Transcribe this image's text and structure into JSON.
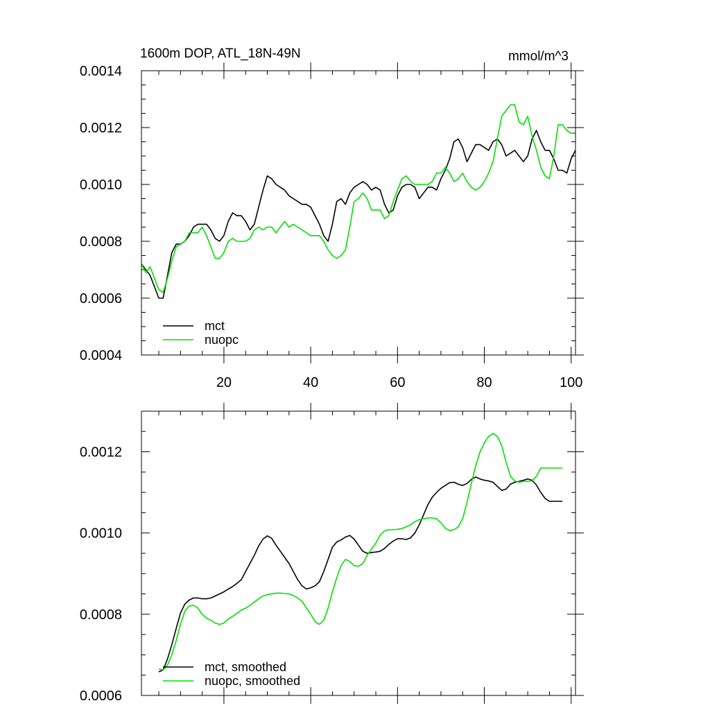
{
  "chart_data": [
    {
      "type": "line",
      "title": "1600m DOP, ATL_18N-49N",
      "units": "mmol/m^3",
      "xlabel": "",
      "ylabel": "",
      "xlim": [
        1,
        101
      ],
      "ylim": [
        0.0004,
        0.0014
      ],
      "x_ticks": [
        20,
        40,
        60,
        80,
        100
      ],
      "y_ticks": [
        0.0004,
        0.0006,
        0.0008,
        0.001,
        0.0012,
        0.0014
      ],
      "y_tick_labels": [
        "0.0004",
        "0.0006",
        "0.0008",
        "0.0010",
        "0.0012",
        "0.0014"
      ],
      "legend_position": "bottom-left",
      "series": [
        {
          "name": "mct",
          "color": "#000000",
          "x": [
            1,
            2,
            3,
            4,
            5,
            6,
            7,
            8,
            9,
            10,
            11,
            12,
            13,
            14,
            15,
            16,
            17,
            18,
            19,
            20,
            21,
            22,
            23,
            24,
            25,
            26,
            27,
            28,
            29,
            30,
            31,
            32,
            33,
            34,
            35,
            36,
            37,
            38,
            39,
            40,
            41,
            42,
            43,
            44,
            45,
            46,
            47,
            48,
            49,
            50,
            51,
            52,
            53,
            54,
            55,
            56,
            57,
            58,
            59,
            60,
            61,
            62,
            63,
            64,
            65,
            66,
            67,
            68,
            69,
            70,
            71,
            72,
            73,
            74,
            75,
            76,
            77,
            78,
            79,
            80,
            81,
            82,
            83,
            84,
            85,
            86,
            87,
            88,
            89,
            90,
            91,
            92,
            93,
            94,
            95,
            96,
            97,
            98,
            99,
            100,
            101
          ],
          "values": [
            0.00072,
            0.0007,
            0.00068,
            0.00064,
            0.0006,
            0.0006,
            0.00068,
            0.00076,
            0.00079,
            0.00079,
            0.0008,
            0.00082,
            0.00085,
            0.00086,
            0.00086,
            0.00086,
            0.00084,
            0.00081,
            0.0008,
            0.00082,
            0.00087,
            0.0009,
            0.00089,
            0.00089,
            0.00087,
            0.00084,
            0.00086,
            0.00092,
            0.00098,
            0.00103,
            0.00102,
            0.001,
            0.00099,
            0.00098,
            0.00096,
            0.00095,
            0.00094,
            0.00093,
            0.00093,
            0.00092,
            0.00089,
            0.00086,
            0.00082,
            0.0008,
            0.00086,
            0.00094,
            0.00095,
            0.00093,
            0.00097,
            0.00099,
            0.001,
            0.00101,
            0.001,
            0.00098,
            0.00099,
            0.00098,
            0.00093,
            0.0009,
            0.00091,
            0.00096,
            0.00099,
            0.001,
            0.001,
            0.00099,
            0.00095,
            0.00097,
            0.00099,
            0.00099,
            0.00098,
            0.00102,
            0.00105,
            0.00109,
            0.00115,
            0.00116,
            0.00113,
            0.00108,
            0.00111,
            0.00114,
            0.00114,
            0.00113,
            0.00112,
            0.00115,
            0.00116,
            0.00114,
            0.0011,
            0.00111,
            0.00112,
            0.0011,
            0.00108,
            0.0011,
            0.00116,
            0.00119,
            0.00115,
            0.00112,
            0.00112,
            0.00109,
            0.00105,
            0.00105,
            0.00104,
            0.00109,
            0.00112
          ]
        },
        {
          "name": "nuopc",
          "color": "#00e000",
          "x": [
            1,
            2,
            3,
            4,
            5,
            6,
            7,
            8,
            9,
            10,
            11,
            12,
            13,
            14,
            15,
            16,
            17,
            18,
            19,
            20,
            21,
            22,
            23,
            24,
            25,
            26,
            27,
            28,
            29,
            30,
            31,
            32,
            33,
            34,
            35,
            36,
            37,
            38,
            39,
            40,
            41,
            42,
            43,
            44,
            45,
            46,
            47,
            48,
            49,
            50,
            51,
            52,
            53,
            54,
            55,
            56,
            57,
            58,
            59,
            60,
            61,
            62,
            63,
            64,
            65,
            66,
            67,
            68,
            69,
            70,
            71,
            72,
            73,
            74,
            75,
            76,
            77,
            78,
            79,
            80,
            81,
            82,
            83,
            84,
            85,
            86,
            87,
            88,
            89,
            90,
            91,
            92,
            93,
            94,
            95,
            96,
            97,
            98,
            99,
            100,
            101
          ],
          "values": [
            0.00072,
            0.00069,
            0.00071,
            0.00067,
            0.00063,
            0.00062,
            0.00067,
            0.00073,
            0.00078,
            0.00079,
            0.0008,
            0.00083,
            0.00083,
            0.00083,
            0.00085,
            0.00082,
            0.00078,
            0.00074,
            0.00074,
            0.00076,
            0.0008,
            0.00081,
            0.0008,
            0.0008,
            0.0008,
            0.00081,
            0.00084,
            0.00085,
            0.00084,
            0.00085,
            0.00085,
            0.00083,
            0.00085,
            0.00087,
            0.00085,
            0.00086,
            0.00085,
            0.00084,
            0.00083,
            0.00082,
            0.00082,
            0.00082,
            0.0008,
            0.00077,
            0.00075,
            0.00074,
            0.00075,
            0.00077,
            0.00085,
            0.00094,
            0.00095,
            0.00097,
            0.00095,
            0.00091,
            0.00091,
            0.00091,
            0.00088,
            0.00089,
            0.00094,
            0.00098,
            0.00102,
            0.00103,
            0.00101,
            0.001,
            0.001,
            0.001,
            0.001,
            0.00101,
            0.00104,
            0.00104,
            0.00106,
            0.00104,
            0.00101,
            0.00102,
            0.00104,
            0.00101,
            0.00099,
            0.00098,
            0.00099,
            0.00101,
            0.00104,
            0.00108,
            0.00116,
            0.00124,
            0.00126,
            0.00128,
            0.00128,
            0.00122,
            0.00121,
            0.00124,
            0.00117,
            0.00112,
            0.00106,
            0.00103,
            0.00102,
            0.0011,
            0.00121,
            0.00121,
            0.00119,
            0.00118,
            0.00118
          ]
        }
      ]
    },
    {
      "type": "line",
      "title": "",
      "xlabel": "",
      "ylabel": "",
      "xlim": [
        1,
        101
      ],
      "ylim": [
        0.0006,
        0.0013
      ],
      "x_ticks": [
        20,
        40,
        60,
        80,
        100
      ],
      "y_ticks": [
        0.0006,
        0.0008,
        0.001,
        0.0012
      ],
      "y_tick_labels": [
        "0.0006",
        "0.0008",
        "0.0010",
        "0.0012"
      ],
      "legend_position": "bottom-left",
      "series": [
        {
          "name": "mct, smoothed",
          "color": "#000000",
          "x": [
            5,
            6,
            7,
            8,
            9,
            10,
            11,
            12,
            13,
            14,
            15,
            16,
            17,
            18,
            19,
            20,
            21,
            22,
            23,
            24,
            25,
            26,
            27,
            28,
            29,
            30,
            31,
            32,
            33,
            34,
            35,
            36,
            37,
            38,
            39,
            40,
            41,
            42,
            43,
            44,
            45,
            46,
            47,
            48,
            49,
            50,
            51,
            52,
            53,
            54,
            55,
            56,
            57,
            58,
            59,
            60,
            61,
            62,
            63,
            64,
            65,
            66,
            67,
            68,
            69,
            70,
            71,
            72,
            73,
            74,
            75,
            76,
            77,
            78,
            79,
            80,
            81,
            82,
            83,
            84,
            85,
            86,
            87,
            88,
            89,
            90,
            91,
            92,
            93,
            94,
            95,
            96,
            97,
            98
          ],
          "values": [
            0.000658,
            0.000663,
            0.00069,
            0.000725,
            0.000765,
            0.000803,
            0.000825,
            0.000835,
            0.00084,
            0.00084,
            0.000838,
            0.000838,
            0.00084,
            0.000845,
            0.00085,
            0.000855,
            0.000862,
            0.000868,
            0.000876,
            0.000885,
            0.000905,
            0.000925,
            0.000945,
            0.000968,
            0.000985,
            0.000993,
            0.000987,
            0.00097,
            0.000955,
            0.00094,
            0.000925,
            0.000905,
            0.000885,
            0.00087,
            0.000862,
            0.000865,
            0.00087,
            0.00088,
            0.000905,
            0.000935,
            0.000965,
            0.000978,
            0.000983,
            0.00099,
            0.000994,
            0.000985,
            0.00097,
            0.000955,
            0.00095,
            0.000952,
            0.000953,
            0.000955,
            0.000962,
            0.000972,
            0.00098,
            0.000986,
            0.000986,
            0.000984,
            0.000988,
            0.001,
            0.00102,
            0.001045,
            0.00107,
            0.001088,
            0.0011,
            0.00111,
            0.001117,
            0.001124,
            0.001125,
            0.00112,
            0.001117,
            0.001122,
            0.001132,
            0.001138,
            0.001133,
            0.00113,
            0.001128,
            0.001125,
            0.001115,
            0.001105,
            0.001108,
            0.00112,
            0.001125,
            0.001127,
            0.00113,
            0.001133,
            0.00113,
            0.001118,
            0.0011,
            0.001085,
            0.001078,
            0.001078,
            0.001078,
            0.001078
          ]
        },
        {
          "name": "nuopc, smoothed",
          "color": "#00e000",
          "x": [
            5,
            6,
            7,
            8,
            9,
            10,
            11,
            12,
            13,
            14,
            15,
            16,
            17,
            18,
            19,
            20,
            21,
            22,
            23,
            24,
            25,
            26,
            27,
            28,
            29,
            30,
            31,
            32,
            33,
            34,
            35,
            36,
            37,
            38,
            39,
            40,
            41,
            42,
            43,
            44,
            45,
            46,
            47,
            48,
            49,
            50,
            51,
            52,
            53,
            54,
            55,
            56,
            57,
            58,
            59,
            60,
            61,
            62,
            63,
            64,
            65,
            66,
            67,
            68,
            69,
            70,
            71,
            72,
            73,
            74,
            75,
            76,
            77,
            78,
            79,
            80,
            81,
            82,
            83,
            84,
            85,
            86,
            87,
            88,
            89,
            90,
            91,
            92,
            93,
            94,
            95,
            96,
            97,
            98
          ],
          "values": [
            0.000665,
            0.000663,
            0.000675,
            0.0007,
            0.000735,
            0.000775,
            0.000808,
            0.00082,
            0.000822,
            0.000815,
            0.0008,
            0.00079,
            0.000785,
            0.000778,
            0.000775,
            0.000778,
            0.000788,
            0.000795,
            0.000802,
            0.00081,
            0.000815,
            0.000822,
            0.00083,
            0.000838,
            0.000845,
            0.000848,
            0.00085,
            0.000852,
            0.000852,
            0.000851,
            0.00085,
            0.000846,
            0.00084,
            0.000832,
            0.000815,
            0.0008,
            0.000782,
            0.000775,
            0.000785,
            0.000815,
            0.000855,
            0.00089,
            0.00092,
            0.000935,
            0.00093,
            0.00092,
            0.000918,
            0.000925,
            0.000945,
            0.00096,
            0.000975,
            0.000995,
            0.001005,
            0.001008,
            0.001008,
            0.001009,
            0.001011,
            0.001015,
            0.00102,
            0.001028,
            0.001033,
            0.001035,
            0.001037,
            0.001037,
            0.001035,
            0.001025,
            0.001012,
            0.001006,
            0.001008,
            0.001015,
            0.001035,
            0.001075,
            0.001122,
            0.001165,
            0.0012,
            0.001222,
            0.001238,
            0.001245,
            0.001238,
            0.001215,
            0.001175,
            0.00114,
            0.001128,
            0.001125,
            0.001127,
            0.001127,
            0.001128,
            0.00114,
            0.00116,
            0.00116,
            0.00116,
            0.00116,
            0.00116,
            0.00116
          ]
        }
      ]
    }
  ]
}
